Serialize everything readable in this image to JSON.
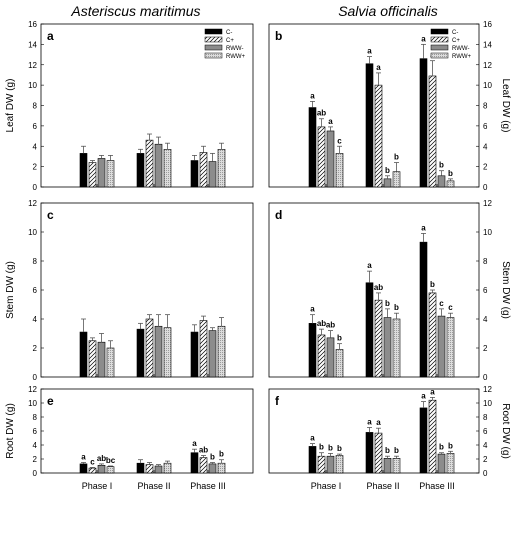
{
  "figure": {
    "left_title": "Asteriscus maritimus",
    "right_title": "Salvia officinalis"
  },
  "chart_data": [
    {
      "id": "a",
      "type": "bar",
      "species": "Asteriscus maritimus",
      "ylabel": "Leaf DW (g)",
      "ylim": [
        0,
        16
      ],
      "yticks": [
        0,
        2,
        4,
        6,
        8,
        10,
        12,
        14,
        16
      ],
      "categories": [
        "Phase I",
        "Phase II",
        "Phase III"
      ],
      "series": [
        {
          "name": "C-",
          "values": [
            3.3,
            3.3,
            2.6
          ],
          "errors": [
            0.7,
            0.4,
            0.5
          ],
          "letters": [
            "",
            "",
            ""
          ]
        },
        {
          "name": "C+",
          "values": [
            2.4,
            4.6,
            3.4
          ],
          "errors": [
            0.2,
            0.6,
            0.6
          ],
          "letters": [
            "",
            "",
            ""
          ]
        },
        {
          "name": "RWW-",
          "values": [
            2.8,
            4.2,
            2.5
          ],
          "errors": [
            0.3,
            0.7,
            0.8
          ],
          "letters": [
            "",
            "",
            ""
          ]
        },
        {
          "name": "RWW+",
          "values": [
            2.6,
            3.7,
            3.7
          ],
          "errors": [
            0.5,
            0.6,
            0.6
          ],
          "letters": [
            "",
            "",
            ""
          ]
        }
      ],
      "legend": {
        "show": true,
        "position": "top-right"
      },
      "yaxis_side": "left"
    },
    {
      "id": "b",
      "type": "bar",
      "species": "Salvia officinalis",
      "ylabel": "Leaf DW (g)",
      "ylim": [
        0,
        16
      ],
      "yticks": [
        0,
        2,
        4,
        6,
        8,
        10,
        12,
        14,
        16
      ],
      "categories": [
        "Phase I",
        "Phase II",
        "Phase III"
      ],
      "series": [
        {
          "name": "C-",
          "values": [
            7.8,
            12.1,
            12.6
          ],
          "errors": [
            0.6,
            0.7,
            1.4
          ],
          "letters": [
            "a",
            "a",
            "a"
          ]
        },
        {
          "name": "C+",
          "values": [
            5.9,
            10.0,
            10.9
          ],
          "errors": [
            0.8,
            1.2,
            1.5
          ],
          "letters": [
            "ab",
            "a",
            "a"
          ]
        },
        {
          "name": "RWW-",
          "values": [
            5.5,
            0.8,
            1.1
          ],
          "errors": [
            0.4,
            0.3,
            0.5
          ],
          "letters": [
            "a",
            "b",
            "b"
          ]
        },
        {
          "name": "RWW+",
          "values": [
            3.3,
            1.5,
            0.6
          ],
          "errors": [
            0.7,
            0.9,
            0.2
          ],
          "letters": [
            "c",
            "b",
            "b"
          ]
        }
      ],
      "legend": {
        "show": true,
        "position": "top-right"
      },
      "yaxis_side": "right"
    },
    {
      "id": "c",
      "type": "bar",
      "species": "Asteriscus maritimus",
      "ylabel": "Stem DW (g)",
      "ylim": [
        0,
        12
      ],
      "yticks": [
        0,
        2,
        4,
        6,
        8,
        10,
        12
      ],
      "categories": [
        "Phase I",
        "Phase II",
        "Phase III"
      ],
      "series": [
        {
          "name": "C-",
          "values": [
            3.1,
            3.3,
            3.1
          ],
          "errors": [
            0.9,
            0.4,
            0.5
          ],
          "letters": [
            "",
            "",
            ""
          ]
        },
        {
          "name": "C+",
          "values": [
            2.5,
            4.0,
            3.9
          ],
          "errors": [
            0.2,
            0.3,
            0.3
          ],
          "letters": [
            "",
            "",
            ""
          ]
        },
        {
          "name": "RWW-",
          "values": [
            2.4,
            3.5,
            3.2
          ],
          "errors": [
            0.6,
            0.8,
            0.2
          ],
          "letters": [
            "",
            "",
            ""
          ]
        },
        {
          "name": "RWW+",
          "values": [
            2.0,
            3.4,
            3.5
          ],
          "errors": [
            0.5,
            0.9,
            0.6
          ],
          "letters": [
            "",
            "",
            ""
          ]
        }
      ],
      "legend": {
        "show": false
      },
      "yaxis_side": "left"
    },
    {
      "id": "d",
      "type": "bar",
      "species": "Salvia officinalis",
      "ylabel": "Stem DW (g)",
      "ylim": [
        0,
        12
      ],
      "yticks": [
        0,
        2,
        4,
        6,
        8,
        10,
        12
      ],
      "categories": [
        "Phase I",
        "Phase II",
        "Phase III"
      ],
      "series": [
        {
          "name": "C-",
          "values": [
            3.7,
            6.5,
            9.3
          ],
          "errors": [
            0.6,
            0.8,
            0.6
          ],
          "letters": [
            "a",
            "a",
            "a"
          ]
        },
        {
          "name": "C+",
          "values": [
            2.9,
            5.3,
            5.8
          ],
          "errors": [
            0.4,
            0.5,
            0.2
          ],
          "letters": [
            "ab",
            "ab",
            "b"
          ]
        },
        {
          "name": "RWW-",
          "values": [
            2.7,
            4.1,
            4.2
          ],
          "errors": [
            0.5,
            0.6,
            0.5
          ],
          "letters": [
            "ab",
            "b",
            "c"
          ]
        },
        {
          "name": "RWW+",
          "values": [
            1.9,
            4.0,
            4.1
          ],
          "errors": [
            0.4,
            0.4,
            0.3
          ],
          "letters": [
            "b",
            "b",
            "c"
          ]
        }
      ],
      "legend": {
        "show": false
      },
      "yaxis_side": "right"
    },
    {
      "id": "e",
      "type": "bar",
      "species": "Asteriscus maritimus",
      "ylabel": "Root DW (g)",
      "ylim": [
        0,
        12
      ],
      "yticks": [
        0,
        2,
        4,
        6,
        8,
        10,
        12
      ],
      "categories": [
        "Phase I",
        "Phase II",
        "Phase III"
      ],
      "series": [
        {
          "name": "C-",
          "values": [
            1.3,
            1.4,
            2.9
          ],
          "errors": [
            0.2,
            0.5,
            0.5
          ],
          "letters": [
            "a",
            "",
            "a"
          ]
        },
        {
          "name": "C+",
          "values": [
            0.7,
            1.2,
            2.2
          ],
          "errors": [
            0.1,
            0.3,
            0.3
          ],
          "letters": [
            "c",
            "",
            "ab"
          ]
        },
        {
          "name": "RWW-",
          "values": [
            1.1,
            1.0,
            1.3
          ],
          "errors": [
            0.2,
            0.2,
            0.2
          ],
          "letters": [
            "ab",
            "",
            "b"
          ]
        },
        {
          "name": "RWW+",
          "values": [
            0.9,
            1.4,
            1.4
          ],
          "errors": [
            0.1,
            0.3,
            0.5
          ],
          "letters": [
            "bc",
            "",
            "b"
          ]
        }
      ],
      "legend": {
        "show": false
      },
      "yaxis_side": "left"
    },
    {
      "id": "f",
      "type": "bar",
      "species": "Salvia officinalis",
      "ylabel": "Root DW (g)",
      "ylim": [
        0,
        12
      ],
      "yticks": [
        0,
        2,
        4,
        6,
        8,
        10,
        12
      ],
      "categories": [
        "Phase I",
        "Phase II",
        "Phase III"
      ],
      "series": [
        {
          "name": "C-",
          "values": [
            3.8,
            5.8,
            9.3
          ],
          "errors": [
            0.4,
            0.7,
            0.9
          ],
          "letters": [
            "a",
            "a",
            "a"
          ]
        },
        {
          "name": "C+",
          "values": [
            2.4,
            5.7,
            10.4
          ],
          "errors": [
            0.5,
            0.7,
            0.4
          ],
          "letters": [
            "b",
            "a",
            "a"
          ]
        },
        {
          "name": "RWW-",
          "values": [
            2.4,
            2.1,
            2.7
          ],
          "errors": [
            0.4,
            0.3,
            0.2
          ],
          "letters": [
            "b",
            "b",
            "b"
          ]
        },
        {
          "name": "RWW+",
          "values": [
            2.5,
            2.1,
            2.8
          ],
          "errors": [
            0.2,
            0.3,
            0.3
          ],
          "letters": [
            "b",
            "b",
            "b"
          ]
        }
      ],
      "legend": {
        "show": false
      },
      "yaxis_side": "right"
    }
  ]
}
